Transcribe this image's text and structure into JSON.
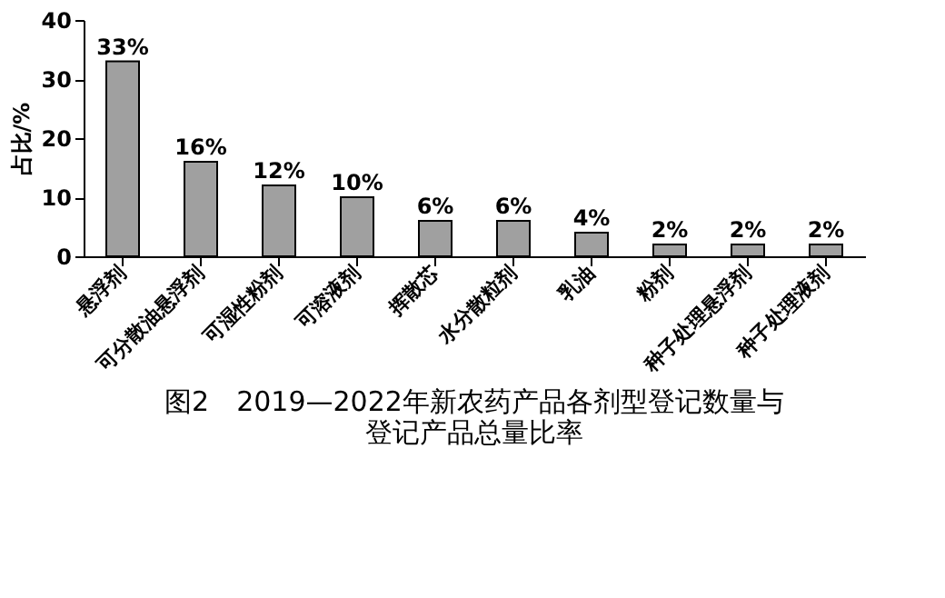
{
  "chart_data": {
    "type": "bar",
    "title": "图2　2019—2022年新农药产品各剂型登记数量与登记产品总量比率",
    "ylabel": "占比/%",
    "categories": [
      "悬浮剂",
      "可分散油悬浮剂",
      "可湿性粉剂",
      "可溶液剂",
      "挥散芯",
      "水分散粒剂",
      "乳油",
      "粉剂",
      "种子处理悬浮剂",
      "种子处理液剂"
    ],
    "values": [
      33,
      16,
      12,
      10,
      6,
      6,
      4,
      2,
      2,
      2
    ],
    "value_labels": [
      "33%",
      "16%",
      "12%",
      "10%",
      "6%",
      "6%",
      "4%",
      "2%",
      "2%",
      "2%"
    ],
    "color": "#a0a0a0",
    "ylim": [
      0,
      40
    ],
    "yticks": [
      0,
      10,
      20,
      30,
      40
    ],
    "grid": false
  }
}
